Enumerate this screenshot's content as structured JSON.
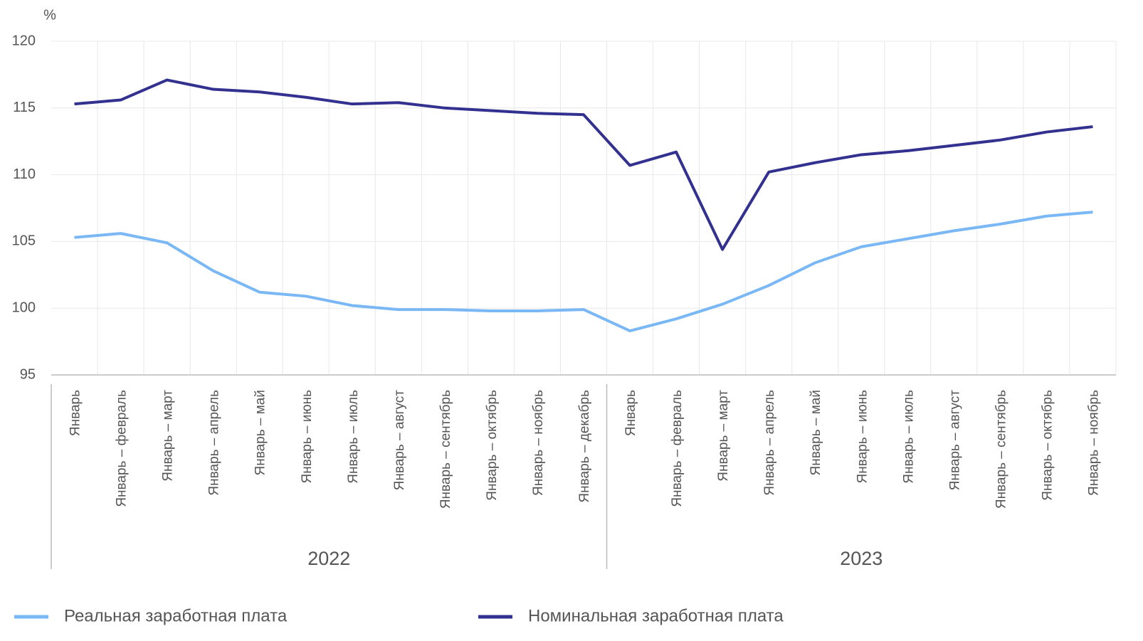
{
  "chart_data": {
    "type": "line",
    "y_label": "%",
    "groups": [
      {
        "name": "2022",
        "categories": [
          "Январь",
          "Январь – февраль",
          "Январь – март",
          "Январь – апрель",
          "Январь – май",
          "Январь – июнь",
          "Январь – июль",
          "Январь – август",
          "Январь – сентябрь",
          "Январь – октябрь",
          "Январь – ноябрь",
          "Январь – декабрь"
        ]
      },
      {
        "name": "2023",
        "categories": [
          "Январь",
          "Январь – февраль",
          "Январь – март",
          "Январь – апрель",
          "Январь – май",
          "Январь – июнь",
          "Январь – июль",
          "Январь – август",
          "Январь – сентябрь",
          "Январь – октябрь",
          "Январь – ноябрь"
        ]
      }
    ],
    "series": [
      {
        "name": "Реальная заработная плата",
        "color": "#7ab8f5",
        "values": [
          105.3,
          105.6,
          104.9,
          102.8,
          101.2,
          100.9,
          100.2,
          99.9,
          99.9,
          99.8,
          99.8,
          99.9,
          98.3,
          99.2,
          100.3,
          101.7,
          103.4,
          104.6,
          105.2,
          105.8,
          106.3,
          106.9,
          107.2
        ]
      },
      {
        "name": "Номинальная заработная плата",
        "color": "#33318f",
        "values": [
          115.3,
          115.6,
          117.1,
          116.4,
          116.2,
          115.8,
          115.3,
          115.4,
          115.0,
          114.8,
          114.6,
          114.5,
          110.7,
          111.7,
          104.4,
          110.2,
          110.9,
          111.5,
          111.8,
          112.2,
          112.6,
          113.2,
          113.6
        ]
      }
    ],
    "ylim": [
      95,
      120
    ],
    "yticks": [
      95,
      100,
      105,
      110,
      115,
      120
    ],
    "grid": true
  }
}
